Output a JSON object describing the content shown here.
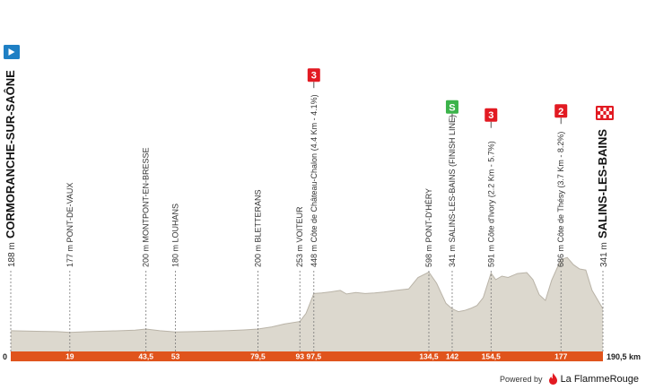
{
  "chart_data": {
    "type": "area",
    "xlim": [
      0,
      190.5
    ],
    "axis": {
      "start_label": "0",
      "end_label": "190,5 km"
    },
    "profile": {
      "x": [
        0,
        5,
        10,
        15,
        19,
        25,
        30,
        35,
        40,
        43.5,
        48,
        53,
        60,
        65,
        70,
        75,
        79.5,
        84,
        88,
        93,
        95,
        97.5,
        100,
        103,
        106,
        108,
        111,
        114,
        117,
        120,
        124,
        128,
        131,
        134.5,
        137,
        140,
        142,
        144,
        146,
        148,
        150,
        152,
        154.5,
        156,
        158,
        160,
        163,
        166,
        168,
        170,
        172,
        174,
        177,
        179,
        181,
        183,
        185,
        187,
        190.5
      ],
      "y": [
        188,
        186,
        184,
        182,
        177,
        182,
        185,
        188,
        192,
        200,
        188,
        180,
        183,
        186,
        189,
        194,
        200,
        215,
        235,
        253,
        310,
        448,
        452,
        460,
        470,
        445,
        455,
        448,
        452,
        458,
        470,
        480,
        560,
        598,
        520,
        380,
        341,
        322,
        330,
        345,
        365,
        420,
        591,
        545,
        570,
        560,
        588,
        595,
        545,
        440,
        400,
        540,
        686,
        700,
        650,
        620,
        612,
        470,
        341
      ]
    },
    "waypoints": [
      {
        "km": "19",
        "x": 19,
        "label": "177 m PONT-DE-VAUX"
      },
      {
        "km": "43,5",
        "x": 43.5,
        "label": "200 m MONTPONT-EN-BRESSE"
      },
      {
        "km": "53",
        "x": 53,
        "label": "180 m LOUHANS"
      },
      {
        "km": "79,5",
        "x": 79.5,
        "label": "200 m BLETTERANS"
      },
      {
        "km": "93",
        "x": 93,
        "label": "253 m VOITEUR"
      },
      {
        "km": "97,5",
        "x": 97.5,
        "label": "448 m Côte de Château-Chalon (4.4 Km - 4.1%)",
        "badge": "3"
      },
      {
        "km": "134,5",
        "x": 134.5,
        "label": "598 m PONT-D'HÉRY"
      },
      {
        "km": "142",
        "x": 142,
        "label": "341 m SALINS-LES-BAINS (FINISH LINE)",
        "sprint": "S"
      },
      {
        "km": "154,5",
        "x": 154.5,
        "label": "591 m Côte d'Ivory (2.2 Km - 5.7%)",
        "badge": "3"
      },
      {
        "km": "177",
        "x": 177,
        "label": "686 m Côte de Thésy (3.7 Km - 8.2%)",
        "badge": "2"
      }
    ],
    "start": {
      "label": "188 m CORMORANCHE-SUR-SAÔNE",
      "alt": "188 m",
      "name": "CORMORANCHE-SUR-SAÔNE"
    },
    "finish": {
      "label": "341 m SALINS-LES-BAINS",
      "alt": "341 m",
      "name": "SALINS-LES-BAINS"
    },
    "colors": {
      "fill": "#dcd8ce",
      "edge": "#b9b3a7",
      "bar": "#e0541c",
      "km_text": "#ffffff",
      "badge": "#e21a22",
      "sprint": "#3bb34a",
      "start_flag": "#1e7fc4",
      "finish_flag": "#e21a22"
    }
  },
  "footer": {
    "powered": "Powered by",
    "brand": "La FlammeRouge"
  }
}
